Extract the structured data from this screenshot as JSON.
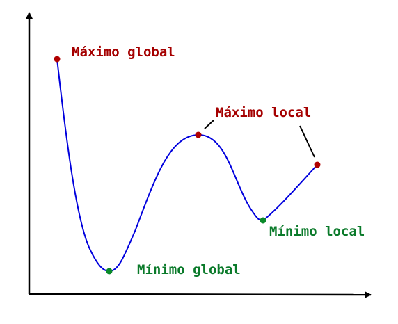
{
  "labels": {
    "global_max": "Máximo global",
    "local_max": "Máximo local",
    "global_min": "Mínimo global",
    "local_min": "Mínimo local"
  },
  "colors": {
    "axes": "#000000",
    "curve": "#0000dd",
    "maximum": "#b00000",
    "minimum": "#0a8a2a",
    "max_label": "#a50000",
    "min_label": "#0a7a2a"
  }
}
